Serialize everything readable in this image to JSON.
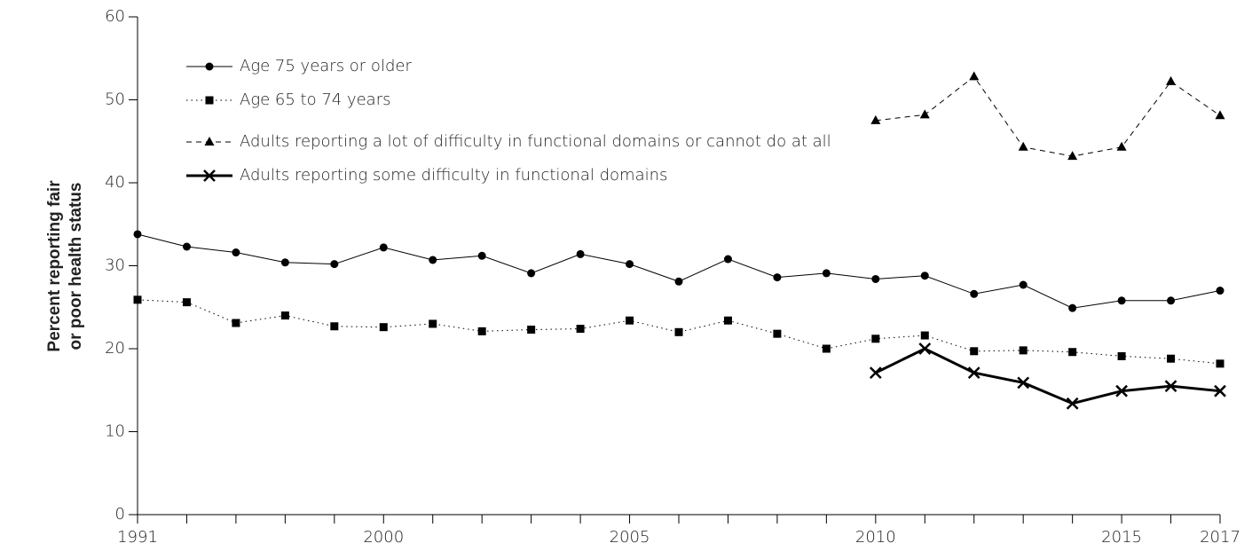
{
  "chart_data": {
    "type": "line",
    "y_label": [
      "Percent reporting fair",
      "or poor health status"
    ],
    "categories": [
      "1991",
      null,
      null,
      null,
      null,
      "2000",
      null,
      null,
      null,
      null,
      "2005",
      null,
      null,
      null,
      null,
      "2010",
      null,
      null,
      null,
      null,
      "2015",
      null,
      "2017"
    ],
    "ylim": [
      0,
      60
    ],
    "yticks": [
      0,
      10,
      20,
      30,
      40,
      50,
      60
    ],
    "series": [
      {
        "name": "Age 75 years or older",
        "color": "#000000",
        "marker": "circle",
        "dash": "solid",
        "width": 1,
        "values": [
          33.8,
          32.3,
          31.6,
          30.4,
          30.2,
          32.2,
          30.7,
          31.2,
          29.1,
          31.4,
          30.2,
          28.1,
          30.8,
          28.6,
          29.1,
          28.4,
          28.8,
          26.6,
          27.7,
          24.9,
          25.8,
          25.8,
          27.0
        ]
      },
      {
        "name": "Age 65 to 74 years",
        "color": "#000000",
        "marker": "square",
        "dash": "dotted",
        "width": 1,
        "values": [
          25.9,
          25.6,
          23.1,
          24.0,
          22.7,
          22.6,
          23.0,
          22.1,
          22.3,
          22.4,
          23.4,
          22.0,
          23.4,
          21.8,
          20.0,
          21.2,
          21.6,
          19.7,
          19.8,
          19.6,
          19.1,
          18.8,
          18.2
        ]
      },
      {
        "name": "Adults reporting a lot of difficulty in functional domains or cannot do at all",
        "color": "#000000",
        "marker": "triangle",
        "dash": "dashed",
        "width": 1,
        "values": [
          null,
          null,
          null,
          null,
          null,
          null,
          null,
          null,
          null,
          null,
          null,
          null,
          null,
          null,
          null,
          47.5,
          48.2,
          52.8,
          44.3,
          43.2,
          44.3,
          52.2,
          48.1
        ]
      },
      {
        "name": "Adults reporting some difficulty in functional domains",
        "color": "#000000",
        "marker": "x",
        "dash": "solid",
        "width": 3,
        "values": [
          null,
          null,
          null,
          null,
          null,
          null,
          null,
          null,
          null,
          null,
          null,
          null,
          null,
          null,
          null,
          17.1,
          20.0,
          17.1,
          15.9,
          13.4,
          14.9,
          15.5,
          14.9
        ]
      }
    ]
  }
}
